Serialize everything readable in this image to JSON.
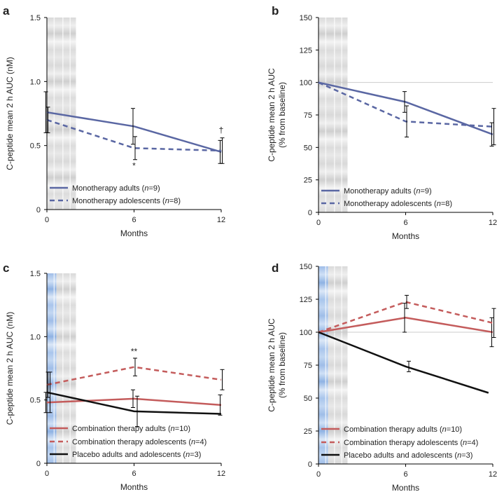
{
  "chart_data": [
    {
      "panel": "a",
      "type": "line",
      "xlabel": "Months",
      "ylabel": "C-peptide mean 2 h AUC (nM)",
      "xlim": [
        0,
        12
      ],
      "ylim": [
        0,
        1.5
      ],
      "xticks": [
        "0",
        "6",
        "12"
      ],
      "yticks": [
        "0",
        "0.5",
        "1.0",
        "1.5"
      ],
      "shaded_band": {
        "x_range": [
          0,
          2
        ],
        "style": "grey"
      },
      "reference_line": null,
      "series": [
        {
          "name": "Monotherapy adults",
          "n": "9",
          "color": "#5a67a3",
          "dash": "solid",
          "x": [
            0,
            6,
            12
          ],
          "y": [
            0.76,
            0.65,
            0.45
          ],
          "err": [
            0.16,
            0.14,
            0.09
          ]
        },
        {
          "name": "Monotherapy adolescents",
          "n": "8",
          "color": "#5a67a3",
          "dash": "dashed",
          "x": [
            0,
            6,
            12
          ],
          "y": [
            0.7,
            0.48,
            0.46
          ],
          "err": [
            0.1,
            0.09,
            0.1
          ]
        }
      ],
      "annotations": [
        {
          "text": "*",
          "x": 6,
          "y": 0.32
        },
        {
          "text": "†",
          "x": 12,
          "y": 0.6
        }
      ]
    },
    {
      "panel": "b",
      "type": "line",
      "xlabel": "Months",
      "ylabel": [
        "C-peptide mean 2 h AUC",
        "(% from baseline)"
      ],
      "xlim": [
        0,
        12
      ],
      "ylim": [
        0,
        150
      ],
      "xticks": [
        "0",
        "6",
        "12"
      ],
      "yticks": [
        "0",
        "25",
        "50",
        "75",
        "100",
        "125",
        "150"
      ],
      "shaded_band": {
        "x_range": [
          0,
          2
        ],
        "style": "grey"
      },
      "reference_line": 100,
      "series": [
        {
          "name": "Monotherapy adults",
          "n": "9",
          "color": "#5a67a3",
          "dash": "solid",
          "x": [
            0,
            6,
            12
          ],
          "y": [
            100,
            85,
            60
          ],
          "err": [
            0,
            8,
            9
          ]
        },
        {
          "name": "Monotherapy adolescents",
          "n": "8",
          "color": "#5a67a3",
          "dash": "dashed",
          "x": [
            0,
            6,
            12
          ],
          "y": [
            100,
            70,
            66
          ],
          "err": [
            0,
            12,
            14
          ]
        }
      ],
      "annotations": []
    },
    {
      "panel": "c",
      "type": "line",
      "xlabel": "Months",
      "ylabel": "C-peptide mean 2 h AUC (nM)",
      "xlim": [
        0,
        12
      ],
      "ylim": [
        0,
        1.5
      ],
      "xticks": [
        "0",
        "6",
        "12"
      ],
      "yticks": [
        "0",
        "0.5",
        "1.0",
        "1.5"
      ],
      "shaded_band": {
        "x_range": [
          0,
          2
        ],
        "style": "blue-grey"
      },
      "reference_line": null,
      "series": [
        {
          "name": "Combination therapy adults",
          "n": "10",
          "color": "#c45c5c",
          "dash": "solid",
          "x": [
            0,
            6,
            12
          ],
          "y": [
            0.48,
            0.51,
            0.46
          ],
          "err": [
            0.08,
            0.07,
            0.08
          ]
        },
        {
          "name": "Combination therapy adolescents",
          "n": "4",
          "color": "#c45c5c",
          "dash": "dashed",
          "x": [
            0,
            6,
            12
          ],
          "y": [
            0.62,
            0.76,
            0.66
          ],
          "err": [
            0.1,
            0.07,
            0.08
          ]
        },
        {
          "name": "Placebo adults and adolescents",
          "n": "3",
          "color": "#111111",
          "dash": "solid",
          "x": [
            0,
            6,
            12
          ],
          "y": [
            0.56,
            0.41,
            0.39
          ],
          "err": [
            0.16,
            0.12,
            0
          ]
        }
      ],
      "annotations": [
        {
          "text": "**",
          "x": 6,
          "y": 0.86
        }
      ]
    },
    {
      "panel": "d",
      "type": "line",
      "xlabel": "Months",
      "ylabel": [
        "C-peptide mean 2 h AUC",
        "(% from baseline)"
      ],
      "xlim": [
        0,
        12
      ],
      "ylim": [
        0,
        150
      ],
      "xticks": [
        "0",
        "6",
        "12"
      ],
      "yticks": [
        "0",
        "25",
        "50",
        "75",
        "100",
        "125",
        "150"
      ],
      "shaded_band": {
        "x_range": [
          0,
          2
        ],
        "style": "blue-grey"
      },
      "reference_line": 100,
      "series": [
        {
          "name": "Combination therapy adults",
          "n": "10",
          "color": "#c45c5c",
          "dash": "solid",
          "x": [
            0,
            6,
            12
          ],
          "y": [
            100,
            111,
            100
          ],
          "err": [
            0,
            11,
            11
          ]
        },
        {
          "name": "Combination therapy adolescents",
          "n": "4",
          "color": "#c45c5c",
          "dash": "dashed",
          "x": [
            0,
            6,
            12
          ],
          "y": [
            100,
            123,
            107
          ],
          "err": [
            0,
            5,
            11
          ]
        },
        {
          "name": "Placebo adults and adolescents",
          "n": "3",
          "color": "#111111",
          "dash": "solid",
          "x": [
            0,
            6,
            11.7
          ],
          "y": [
            100,
            74,
            54
          ],
          "err": [
            0,
            4,
            0
          ]
        }
      ],
      "annotations": []
    }
  ]
}
